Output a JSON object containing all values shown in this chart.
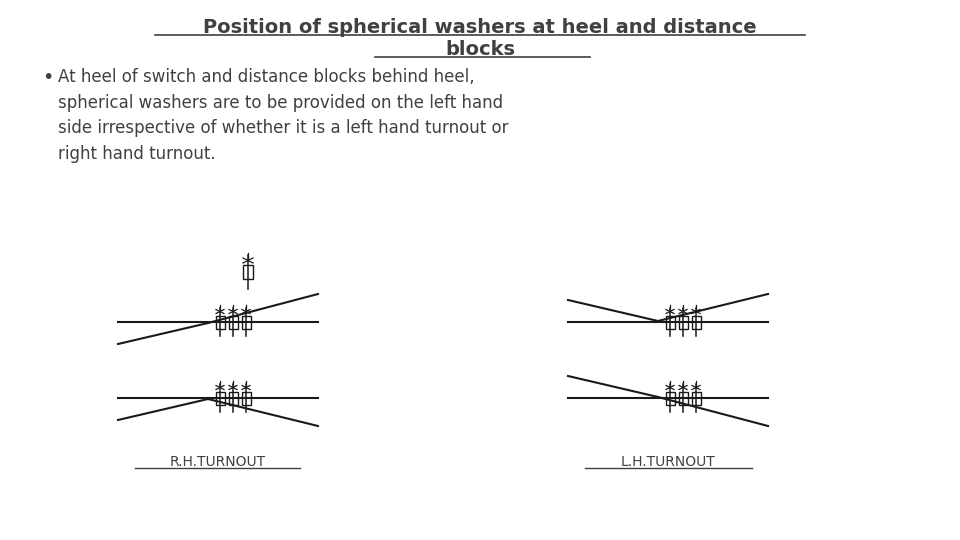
{
  "title_line1": "Position of spherical washers at heel and distance",
  "title_line2": "blocks",
  "bullet_text": "At heel of switch and distance blocks behind heel,\nspherical washers are to be provided on the left hand\nside irrespective of whether it is a left hand turnout or\nright hand turnout.",
  "rh_label": "R.H.TURNOUT",
  "lh_label": "L.H.TURNOUT",
  "bg_color": "#ffffff",
  "text_color": "#404040",
  "line_color": "#1a1a1a",
  "title_fontsize": 14,
  "body_fontsize": 12,
  "label_fontsize": 10
}
